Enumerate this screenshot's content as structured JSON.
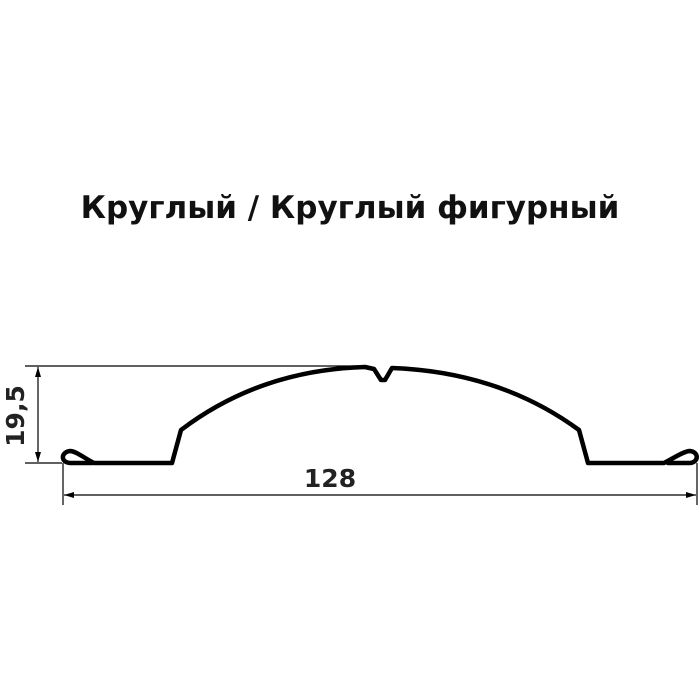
{
  "title": "Круглый / Круглый фигурный",
  "dimensions": {
    "height": "19,5",
    "width": "128"
  },
  "colors": {
    "profile": "#000000",
    "dimension_lines": "#000000",
    "text": "#222222"
  }
}
